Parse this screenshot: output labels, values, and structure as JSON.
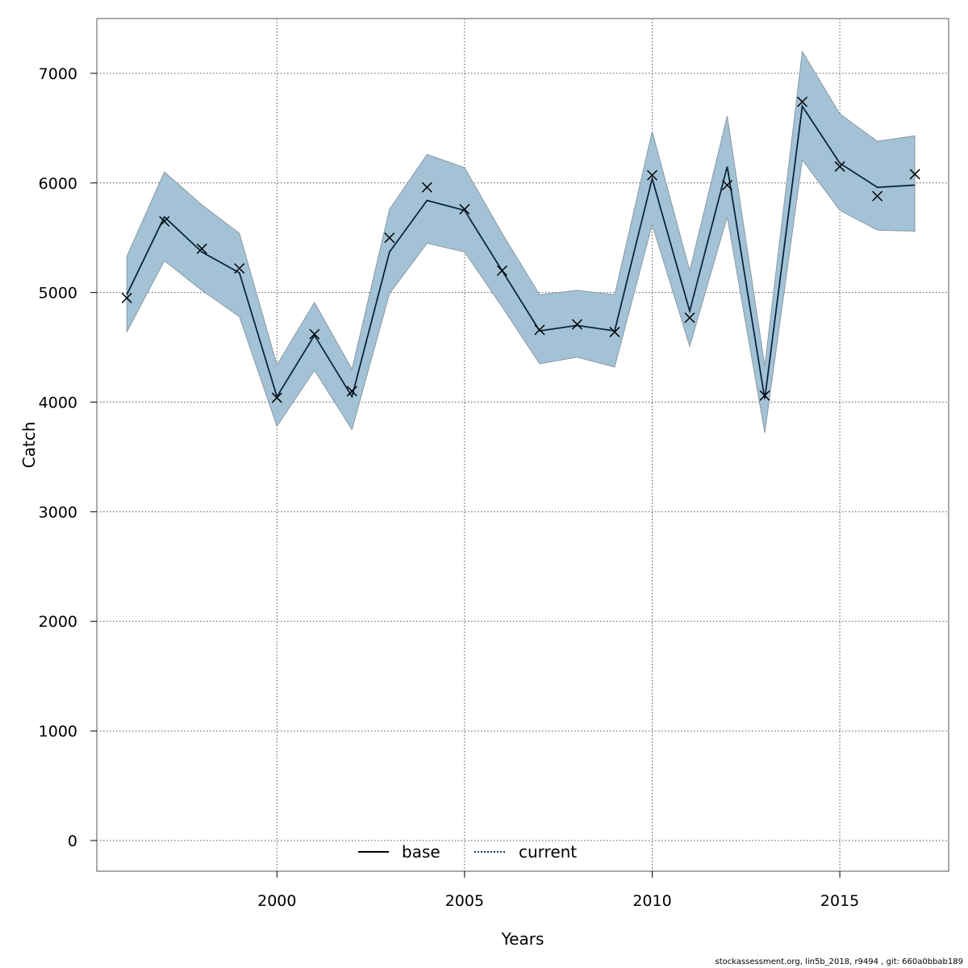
{
  "chart_data": {
    "type": "line",
    "xlabel": "Years",
    "ylabel": "Catch",
    "xlim": [
      1995.2,
      2017.9
    ],
    "ylim": [
      -280,
      7500
    ],
    "xticks": [
      2000,
      2005,
      2010,
      2015
    ],
    "yticks": [
      0,
      1000,
      2000,
      3000,
      4000,
      5000,
      6000,
      7000
    ],
    "grid": true,
    "legend_position": "bottom-center",
    "x": [
      1996,
      1997,
      1998,
      1999,
      2000,
      2001,
      2002,
      2003,
      2004,
      2005,
      2006,
      2007,
      2008,
      2009,
      2010,
      2011,
      2012,
      2013,
      2014,
      2015,
      2016,
      2017
    ],
    "band": {
      "upper": [
        5330,
        6100,
        5800,
        5540,
        4340,
        4910,
        4300,
        5760,
        6260,
        6140,
        5540,
        4980,
        5020,
        4980,
        6470,
        5200,
        6610,
        4330,
        7200,
        6630,
        6380,
        6430
      ],
      "lower": [
        4640,
        5290,
        5020,
        4780,
        3780,
        4290,
        3750,
        4990,
        5450,
        5370,
        4870,
        4350,
        4410,
        4320,
        5620,
        4510,
        5690,
        3720,
        6210,
        5750,
        5570,
        5560
      ],
      "color": "#a3c2d5"
    },
    "series": [
      {
        "name": "base",
        "style": "solid",
        "color": "#000000",
        "values": [
          4980,
          5690,
          5370,
          5180,
          4050,
          4610,
          4050,
          5370,
          5840,
          5750,
          5200,
          4650,
          4700,
          4650,
          6040,
          4830,
          6150,
          4030,
          6700,
          6180,
          5960,
          5980
        ]
      },
      {
        "name": "current",
        "style": "dotted",
        "color": "#0a3d6b",
        "values": [
          4980,
          5690,
          5370,
          5180,
          4050,
          4610,
          4050,
          5370,
          5840,
          5750,
          5200,
          4650,
          4700,
          4650,
          6040,
          4830,
          6150,
          4030,
          6700,
          6180,
          5960,
          5980
        ]
      }
    ],
    "observed": {
      "marker": "x",
      "values": [
        4950,
        5650,
        5400,
        5220,
        4040,
        4620,
        4100,
        5500,
        5960,
        5760,
        5200,
        4660,
        4710,
        4640,
        6070,
        4770,
        5980,
        4060,
        6740,
        6150,
        5880,
        6080
      ]
    }
  },
  "footer_text": "stockassessment.org, lin5b_2018, r9494 , git: 660a0bbab189"
}
